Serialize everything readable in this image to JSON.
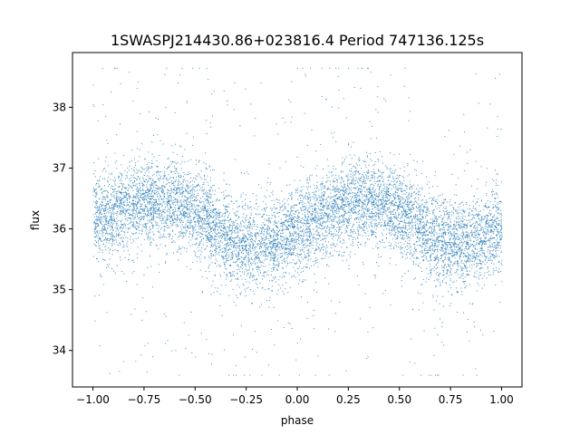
{
  "chart_data": {
    "type": "scatter",
    "title": "1SWASPJ214430.86+023816.4 Period 747136.125s",
    "xlabel": "phase",
    "ylabel": "flux",
    "xlim": [
      -1.1,
      1.1
    ],
    "ylim": [
      33.4,
      38.9
    ],
    "xticks": [
      -1.0,
      -0.75,
      -0.5,
      -0.25,
      0.0,
      0.25,
      0.5,
      0.75,
      1.0
    ],
    "xtick_labels": [
      "−1.00",
      "−0.75",
      "−0.50",
      "−0.25",
      "0.00",
      "0.25",
      "0.50",
      "0.75",
      "1.00"
    ],
    "yticks": [
      34,
      35,
      36,
      37,
      38
    ],
    "ytick_labels": [
      "34",
      "35",
      "36",
      "37",
      "38"
    ],
    "grid": false,
    "marker_color": "#1f77b4",
    "series": [
      {
        "name": "",
        "curve": {
          "phase": [
            -1.0,
            -0.9,
            -0.8,
            -0.7,
            -0.6,
            -0.5,
            -0.4,
            -0.3,
            -0.2,
            -0.1,
            0.0,
            0.1,
            0.2,
            0.3,
            0.4,
            0.5,
            0.6,
            0.7,
            0.8,
            0.9,
            1.0
          ],
          "flux": [
            36.15,
            36.25,
            36.4,
            36.45,
            36.45,
            36.3,
            36.0,
            35.75,
            35.7,
            35.8,
            36.0,
            36.2,
            36.35,
            36.45,
            36.45,
            36.3,
            36.0,
            35.8,
            35.75,
            35.85,
            36.05
          ]
        },
        "scatter_sigma": 0.35,
        "n_points": 9000
      }
    ]
  }
}
